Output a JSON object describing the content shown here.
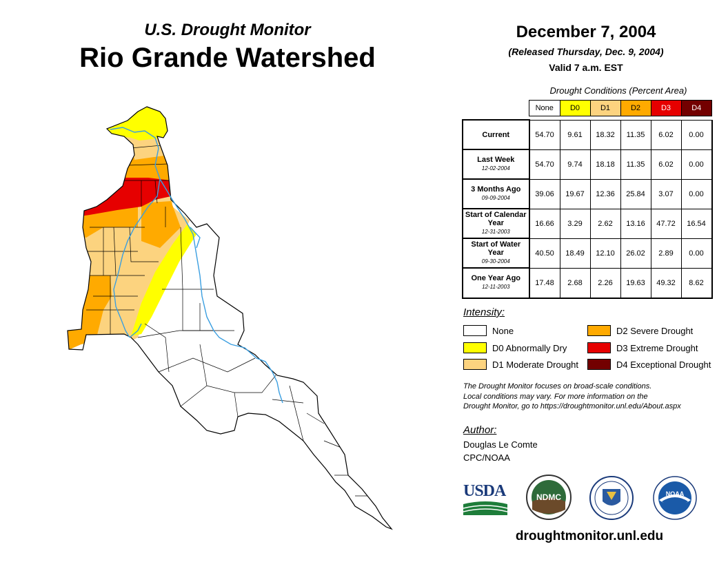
{
  "header": {
    "subtitle": "U.S. Drought Monitor",
    "title": "Rio Grande Watershed"
  },
  "date_block": {
    "date": "December 7, 2004",
    "released": "(Released Thursday, Dec. 9, 2004)",
    "valid": "Valid 7 a.m. EST"
  },
  "table": {
    "caption": "Drought Conditions (Percent Area)",
    "columns": [
      {
        "label": "None",
        "color": "#ffffff",
        "text_color": "#000000"
      },
      {
        "label": "D0",
        "color": "#ffff00",
        "text_color": "#000000"
      },
      {
        "label": "D1",
        "color": "#fcd37f",
        "text_color": "#000000"
      },
      {
        "label": "D2",
        "color": "#ffaa00",
        "text_color": "#000000"
      },
      {
        "label": "D3",
        "color": "#e60000",
        "text_color": "#ffffff"
      },
      {
        "label": "D4",
        "color": "#730000",
        "text_color": "#ffffff"
      }
    ],
    "rows": [
      {
        "label": "Current",
        "date": "",
        "values": [
          "54.70",
          "9.61",
          "18.32",
          "11.35",
          "6.02",
          "0.00"
        ]
      },
      {
        "label": "Last Week",
        "date": "12-02-2004",
        "values": [
          "54.70",
          "9.74",
          "18.18",
          "11.35",
          "6.02",
          "0.00"
        ]
      },
      {
        "label": "3 Months Ago",
        "date": "09-09-2004",
        "values": [
          "39.06",
          "19.67",
          "12.36",
          "25.84",
          "3.07",
          "0.00"
        ]
      },
      {
        "label": "Start of Calendar Year",
        "date": "12-31-2003",
        "values": [
          "16.66",
          "3.29",
          "2.62",
          "13.16",
          "47.72",
          "16.54"
        ]
      },
      {
        "label": "Start of Water Year",
        "date": "09-30-2004",
        "values": [
          "40.50",
          "18.49",
          "12.10",
          "26.02",
          "2.89",
          "0.00"
        ]
      },
      {
        "label": "One Year Ago",
        "date": "12-11-2003",
        "values": [
          "17.48",
          "2.68",
          "2.26",
          "19.63",
          "49.32",
          "8.62"
        ]
      }
    ]
  },
  "legend": {
    "title": "Intensity:",
    "items": [
      {
        "label": "None",
        "color": "#ffffff"
      },
      {
        "label": "D0 Abnormally Dry",
        "color": "#ffff00"
      },
      {
        "label": "D1 Moderate Drought",
        "color": "#fcd37f"
      },
      {
        "label": "D2 Severe Drought",
        "color": "#ffaa00"
      },
      {
        "label": "D3 Extreme Drought",
        "color": "#e60000"
      },
      {
        "label": "D4 Exceptional Drought",
        "color": "#730000"
      }
    ]
  },
  "note": {
    "line1": "The Drought Monitor focuses on broad-scale conditions.",
    "line2": "Local conditions may vary. For more information on the",
    "line3": "Drought Monitor, go to https://droughtmonitor.unl.edu/About.aspx"
  },
  "author": {
    "title": "Author:",
    "name": "Douglas Le Comte",
    "org": "CPC/NOAA"
  },
  "logos": {
    "usda": "USDA",
    "ndmc": "NDMC",
    "noaa": "NOAA"
  },
  "website": "droughtmonitor.unl.edu",
  "map_colors": {
    "none": "#ffffff",
    "d0": "#ffff00",
    "d1": "#fcd37f",
    "d2": "#ffaa00",
    "d3": "#e60000",
    "river": "#3a9ee0",
    "border": "#000000"
  }
}
